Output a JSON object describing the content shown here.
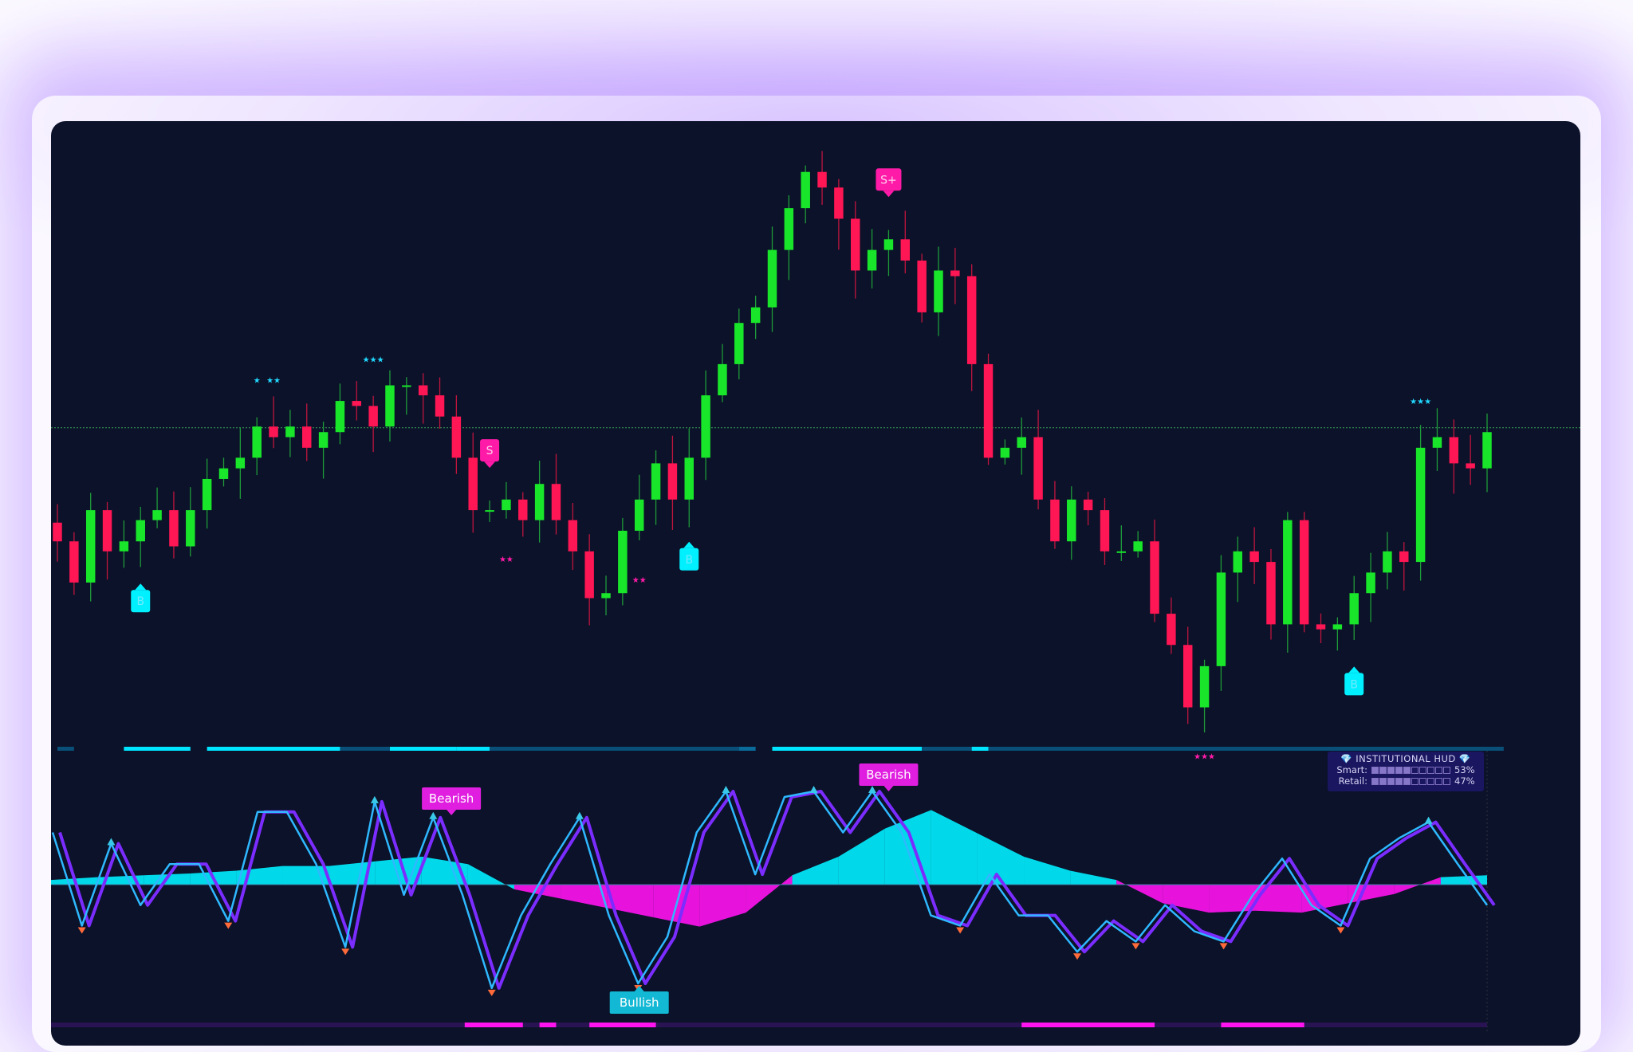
{
  "chart_data": [
    {
      "type": "candlestick",
      "title": "",
      "close": [
        33.3,
        26.7,
        38.3,
        31.7,
        33.3,
        36.7,
        38.3,
        32.5,
        38.3,
        43.3,
        45,
        46.7,
        51.7,
        50,
        51.7,
        48.3,
        50.8,
        55.8,
        55,
        51.7,
        58.3,
        58.3,
        56.7,
        53.3,
        46.7,
        38.3,
        38.3,
        40,
        36.7,
        42.5,
        36.7,
        31.7,
        24.2,
        25,
        35,
        40,
        45.8,
        40,
        46.7,
        56.7,
        61.7,
        68.3,
        70.8,
        80,
        86.7,
        92.5,
        90,
        85,
        76.7,
        80,
        81.7,
        78.3,
        70,
        76.7,
        75.8,
        61.7,
        46.7,
        48.3,
        50,
        40,
        33.3,
        40,
        38.3,
        31.7,
        31.7,
        33.3,
        21.7,
        16.7,
        6.7,
        13.3,
        28.3,
        31.7,
        30,
        20,
        36.7,
        20,
        19.2,
        20,
        25,
        28.3,
        31.7,
        30,
        48.3,
        50,
        45.8,
        45,
        50.8
      ],
      "ylim": [
        0,
        100
      ],
      "reference_line": 51.5,
      "colors": {
        "up": "#19e62a",
        "down": "#ff1654",
        "reference": "#3aa35a"
      },
      "signals": [
        {
          "index": 5,
          "text": "B",
          "side": "below",
          "color": "#00f0ff"
        },
        {
          "index": 26,
          "text": "S",
          "side": "above",
          "color": "#ff1aa8"
        },
        {
          "index": 50,
          "text": "S+",
          "side": "above",
          "color": "#ff1aa8"
        },
        {
          "index": 38,
          "text": "B",
          "side": "below",
          "color": "#00f0ff"
        },
        {
          "index": 78,
          "text": "B",
          "side": "below",
          "color": "#00f0ff"
        }
      ],
      "stars": [
        {
          "index": 12,
          "text": "★",
          "side": "above",
          "color": "#22d8ff"
        },
        {
          "index": 13,
          "text": "★★",
          "side": "above",
          "color": "#22d8ff"
        },
        {
          "index": 19,
          "text": "★★★",
          "side": "above",
          "color": "#22d8ff"
        },
        {
          "index": 27,
          "text": "★★",
          "side": "below",
          "color": "#ff1aa8"
        },
        {
          "index": 35,
          "text": "★★",
          "side": "below",
          "color": "#ff1aa8"
        },
        {
          "index": 69,
          "text": "★★★",
          "side": "below",
          "color": "#ff1aa8"
        },
        {
          "index": 82,
          "text": "★★★",
          "side": "above",
          "color": "#22d8ff"
        }
      ],
      "trend_bar": [
        [
          0,
          1,
          "#0a4f78"
        ],
        [
          4,
          8,
          "#00e5ff"
        ],
        [
          9,
          17,
          "#00e5ff"
        ],
        [
          17,
          20,
          "#0a4f78"
        ],
        [
          20,
          24,
          "#00e5ff"
        ],
        [
          24,
          26,
          "#00e5ff"
        ],
        [
          26,
          41,
          "#0a4f78"
        ],
        [
          41,
          42,
          "#0a6a9a"
        ],
        [
          43,
          52,
          "#00e5ff"
        ],
        [
          52,
          55,
          "#0a4f78"
        ],
        [
          55,
          56,
          "#00e5ff"
        ],
        [
          56,
          87,
          "#0a4f78"
        ]
      ]
    },
    {
      "type": "oscillator",
      "ylim": [
        -1.2,
        1.2
      ],
      "fast": [
        0.56,
        -0.44,
        0.44,
        -0.22,
        0.22,
        0.22,
        -0.39,
        0.78,
        0.78,
        0.22,
        -0.67,
        0.89,
        -0.11,
        0.72,
        -0.11,
        -1.11,
        -0.33,
        0.22,
        0.72,
        -0.33,
        -1.06,
        -0.56,
        0.56,
        1.0,
        0.11,
        0.94,
        1.0,
        0.56,
        1.0,
        0.56,
        -0.33,
        -0.44,
        0.11,
        -0.33,
        -0.33,
        -0.72,
        -0.39,
        -0.61,
        -0.22,
        -0.5,
        -0.61,
        -0.11,
        0.28,
        -0.22,
        -0.44,
        0.28,
        0.5,
        0.67,
        0.22,
        -0.22
      ],
      "histogram": [
        0.05,
        0.08,
        0.1,
        0.12,
        0.15,
        0.2,
        0.2,
        0.25,
        0.3,
        0.22,
        -0.05,
        -0.15,
        -0.25,
        -0.35,
        -0.45,
        -0.3,
        0.1,
        0.3,
        0.6,
        0.8,
        0.55,
        0.3,
        0.15,
        0.05,
        -0.2,
        -0.3,
        -0.28,
        -0.3,
        -0.2,
        -0.1,
        0.08,
        0.1
      ],
      "colors": {
        "fast": "#2fb8ff",
        "slow": "#7b2cff",
        "positive": "#00f0ff",
        "negative": "#ff14f0"
      },
      "annotations": [
        {
          "index": 23.7,
          "text": "Bearish",
          "side": "above",
          "color": "#e01ee0"
        },
        {
          "index": 50,
          "text": "Bearish",
          "side": "above",
          "color": "#e01ee0"
        },
        {
          "index": 35,
          "text": "Bullish",
          "side": "below",
          "color": "#12b8d4"
        }
      ],
      "divergence_bar": [
        [
          24.5,
          28,
          "#ff14f0"
        ],
        [
          29,
          30,
          "#ff14f0"
        ],
        [
          32,
          36,
          "#ff14f0"
        ],
        [
          58,
          66,
          "#ff14f0"
        ],
        [
          70,
          75,
          "#ff14f0"
        ]
      ]
    }
  ],
  "hud": {
    "title": "💎 INSTITUTIONAL HUD 💎",
    "smart_label": "Smart:",
    "smart_value": "53%",
    "smart_fraction": 0.53,
    "retail_label": "Retail:",
    "retail_value": "47%",
    "retail_fraction": 0.47
  }
}
